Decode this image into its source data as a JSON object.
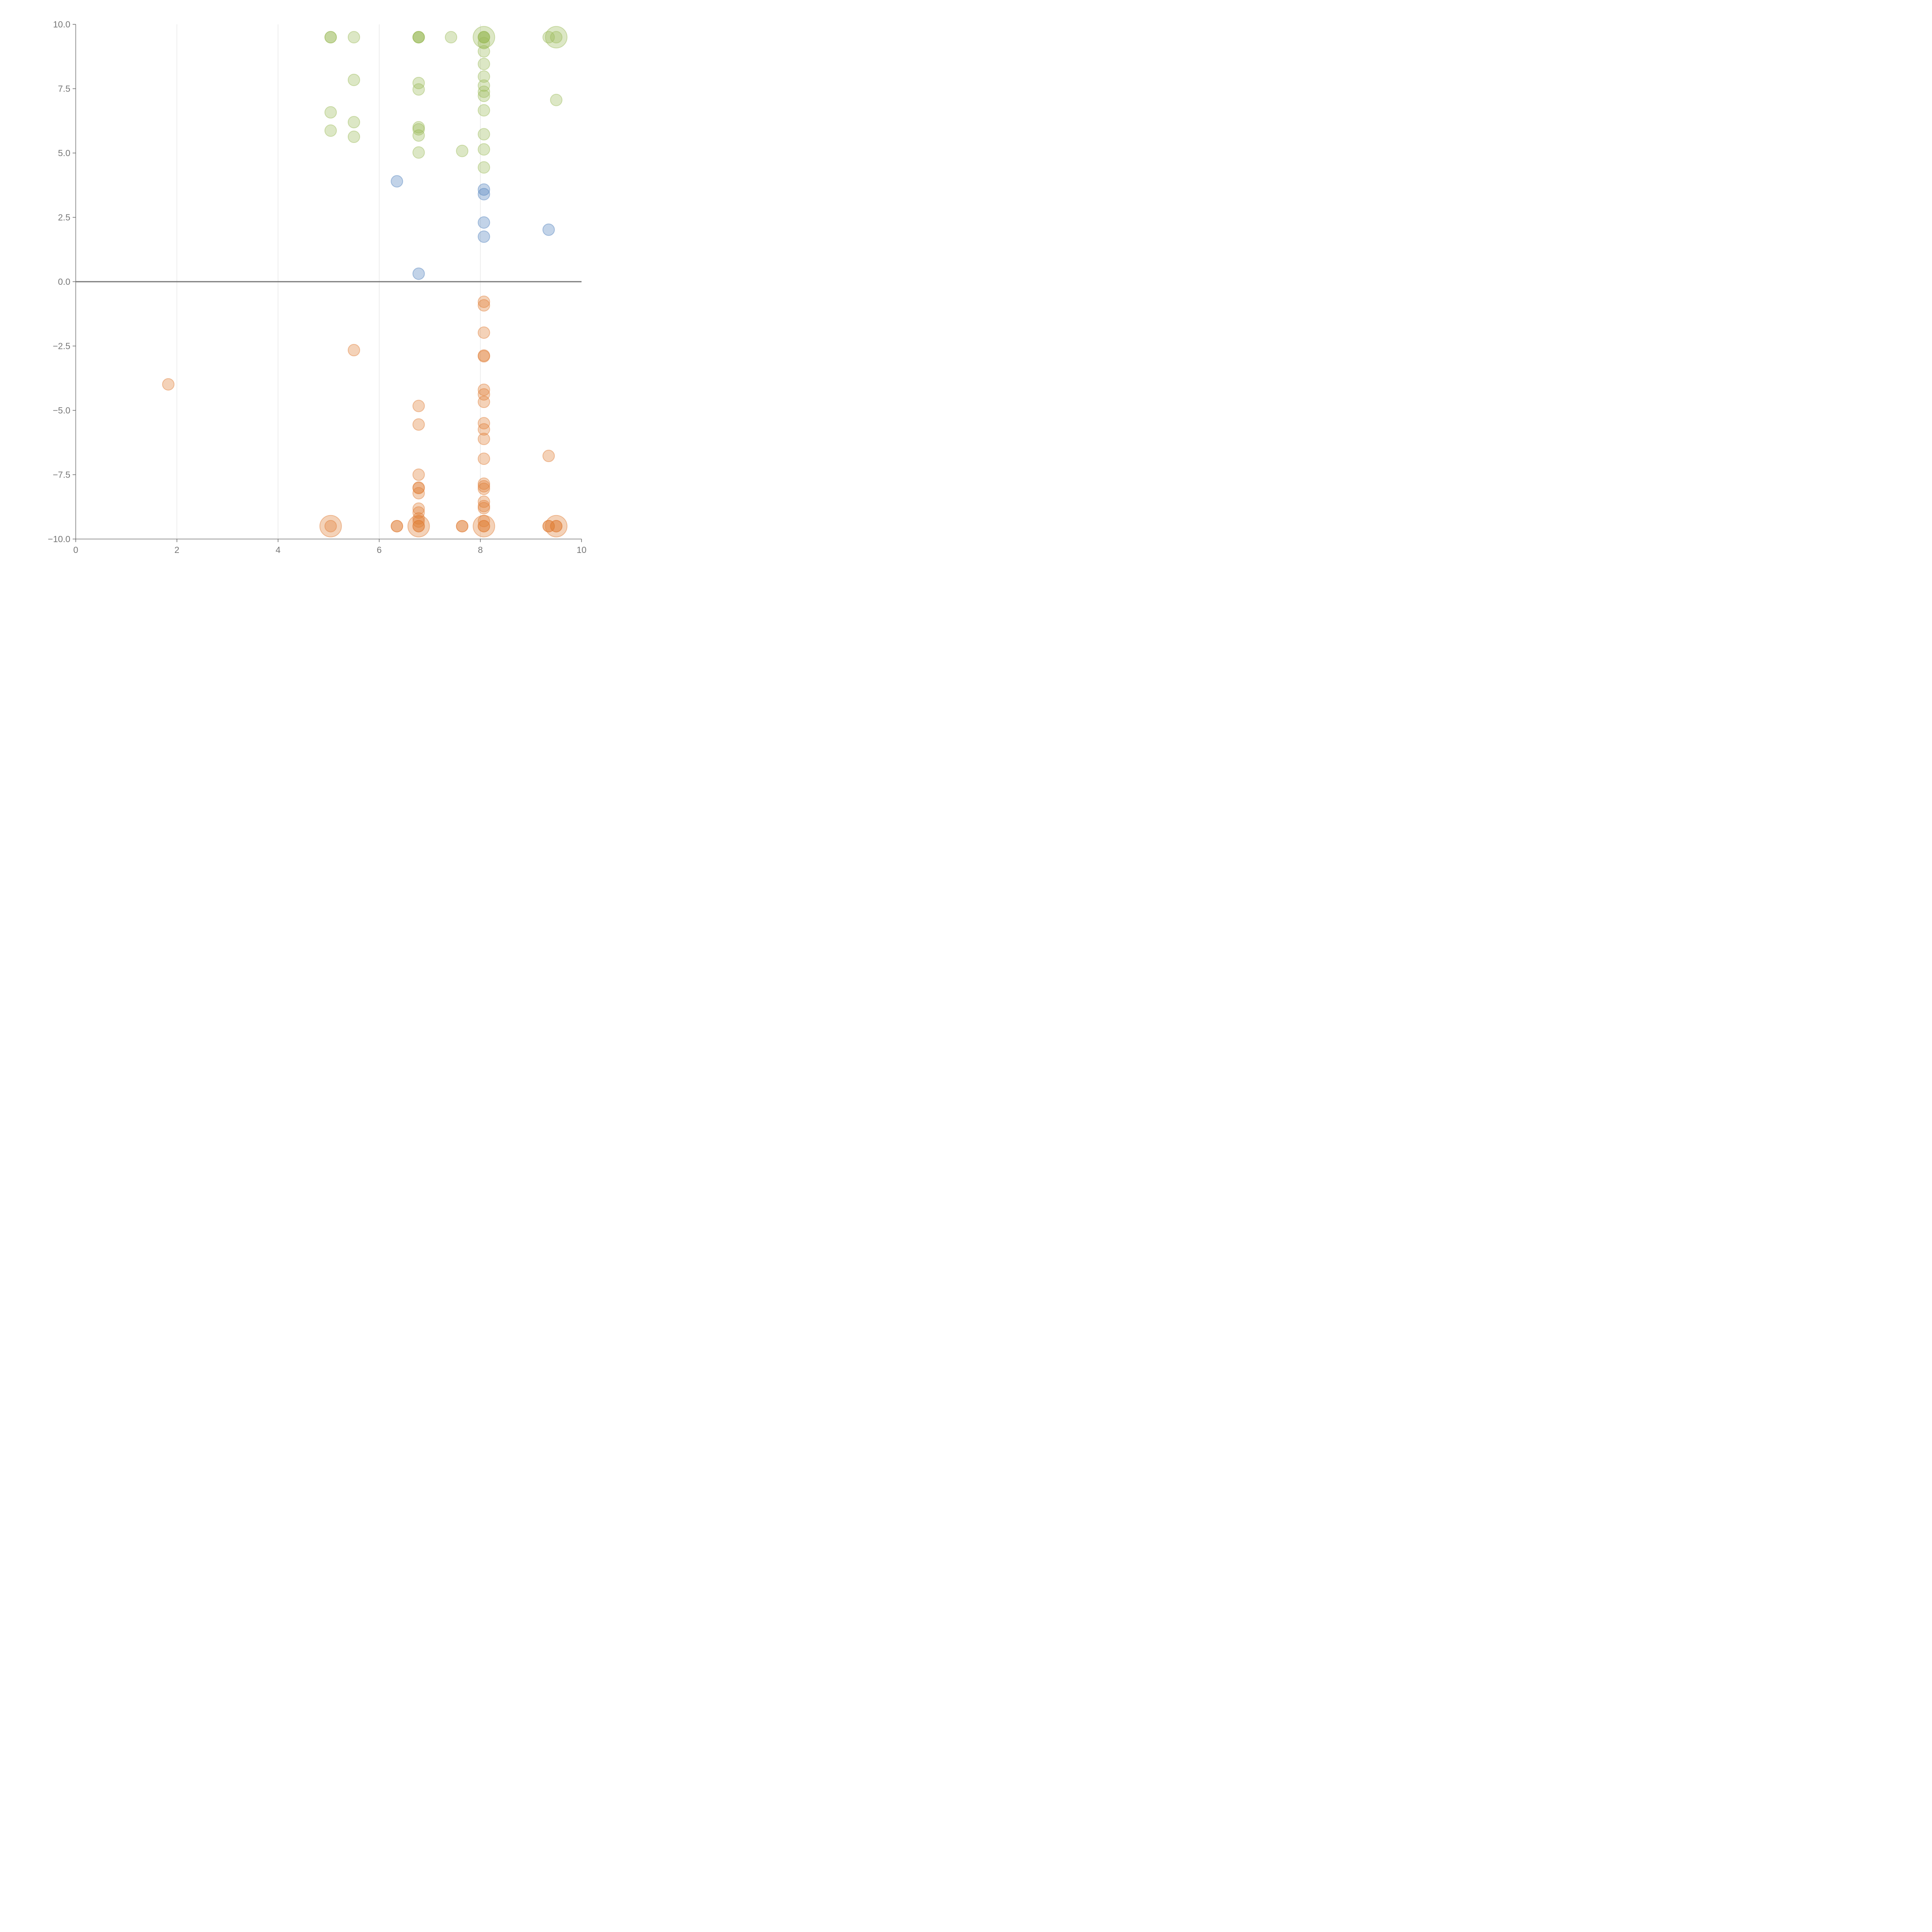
{
  "chart_data": {
    "type": "scatter",
    "title": "",
    "xlabel": "",
    "ylabel": "",
    "xlim": [
      0,
      10
    ],
    "ylim": [
      -10,
      10
    ],
    "x_ticks": [
      "0",
      "2",
      "4",
      "6",
      "8",
      "10"
    ],
    "y_ticks": [
      "10.0",
      "7.5",
      "5.0",
      "2.5",
      "0.0",
      "−2.5",
      "−5.0",
      "−7.5",
      "−10.0"
    ],
    "grid": "vertical",
    "zero_line": true,
    "series": [
      {
        "color": "#9bbb59",
        "points": [
          [
            5.04,
            9.5
          ],
          [
            5.04,
            9.5
          ],
          [
            5.5,
            9.5
          ],
          [
            6.78,
            9.5
          ],
          [
            6.78,
            9.5
          ],
          [
            6.78,
            9.5
          ],
          [
            7.42,
            9.5
          ],
          [
            8.07,
            9.5
          ],
          [
            8.07,
            9.5
          ],
          [
            8.07,
            9.5
          ],
          [
            8.07,
            9.27
          ],
          [
            8.07,
            8.95
          ],
          [
            8.07,
            8.46
          ],
          [
            8.07,
            7.97
          ],
          [
            8.07,
            7.62
          ],
          [
            8.07,
            7.38
          ],
          [
            8.07,
            7.22
          ],
          [
            8.07,
            6.66
          ],
          [
            8.07,
            5.73
          ],
          [
            8.07,
            5.14
          ],
          [
            8.07,
            4.44
          ],
          [
            9.35,
            9.5
          ],
          [
            9.5,
            9.5
          ],
          [
            9.5,
            7.06
          ],
          [
            5.5,
            7.84
          ],
          [
            6.78,
            7.72
          ],
          [
            6.78,
            7.47
          ],
          [
            5.04,
            6.58
          ],
          [
            5.5,
            6.2
          ],
          [
            6.78,
            6.0
          ],
          [
            6.78,
            5.92
          ],
          [
            6.78,
            5.68
          ],
          [
            5.04,
            5.87
          ],
          [
            5.5,
            5.63
          ],
          [
            6.78,
            5.02
          ],
          [
            7.64,
            5.08
          ]
        ],
        "large_points": [
          [
            8.07,
            9.5
          ],
          [
            9.5,
            9.5
          ]
        ]
      },
      {
        "color": "#4f81bd",
        "points": [
          [
            6.35,
            3.9
          ],
          [
            8.07,
            3.58
          ],
          [
            8.07,
            3.4
          ],
          [
            8.07,
            2.3
          ],
          [
            8.07,
            1.75
          ],
          [
            9.35,
            2.02
          ],
          [
            6.78,
            0.31
          ]
        ]
      },
      {
        "color": "#e07d35",
        "points": [
          [
            8.07,
            -0.78
          ],
          [
            8.07,
            -0.92
          ],
          [
            8.07,
            -1.98
          ],
          [
            8.07,
            -2.87
          ],
          [
            8.07,
            -2.9
          ],
          [
            5.5,
            -2.66
          ],
          [
            1.83,
            -3.99
          ],
          [
            8.07,
            -4.2
          ],
          [
            8.07,
            -4.38
          ],
          [
            8.07,
            -4.67
          ],
          [
            6.78,
            -4.83
          ],
          [
            6.78,
            -5.55
          ],
          [
            8.07,
            -5.5
          ],
          [
            8.07,
            -5.74
          ],
          [
            8.07,
            -6.11
          ],
          [
            9.35,
            -6.77
          ],
          [
            8.07,
            -6.88
          ],
          [
            6.78,
            -7.5
          ],
          [
            6.78,
            -8.0
          ],
          [
            6.78,
            -8.02
          ],
          [
            6.78,
            -8.22
          ],
          [
            8.07,
            -7.85
          ],
          [
            8.07,
            -7.95
          ],
          [
            8.07,
            -8.05
          ],
          [
            8.07,
            -8.55
          ],
          [
            8.07,
            -8.72
          ],
          [
            8.07,
            -8.8
          ],
          [
            6.78,
            -8.82
          ],
          [
            6.78,
            -8.97
          ],
          [
            6.78,
            -9.2
          ],
          [
            6.78,
            -9.32
          ],
          [
            8.07,
            -9.3
          ],
          [
            5.04,
            -9.5
          ],
          [
            6.35,
            -9.5
          ],
          [
            6.35,
            -9.5
          ],
          [
            6.78,
            -9.5
          ],
          [
            6.78,
            -9.5
          ],
          [
            7.64,
            -9.5
          ],
          [
            7.64,
            -9.5
          ],
          [
            8.07,
            -9.5
          ],
          [
            8.07,
            -9.5
          ],
          [
            9.35,
            -9.5
          ],
          [
            9.35,
            -9.5
          ],
          [
            9.5,
            -9.5
          ],
          [
            9.5,
            -9.5
          ]
        ],
        "large_points": [
          [
            5.04,
            -9.5
          ],
          [
            6.78,
            -9.5
          ],
          [
            8.07,
            -9.5
          ],
          [
            9.5,
            -9.5
          ]
        ]
      }
    ]
  }
}
